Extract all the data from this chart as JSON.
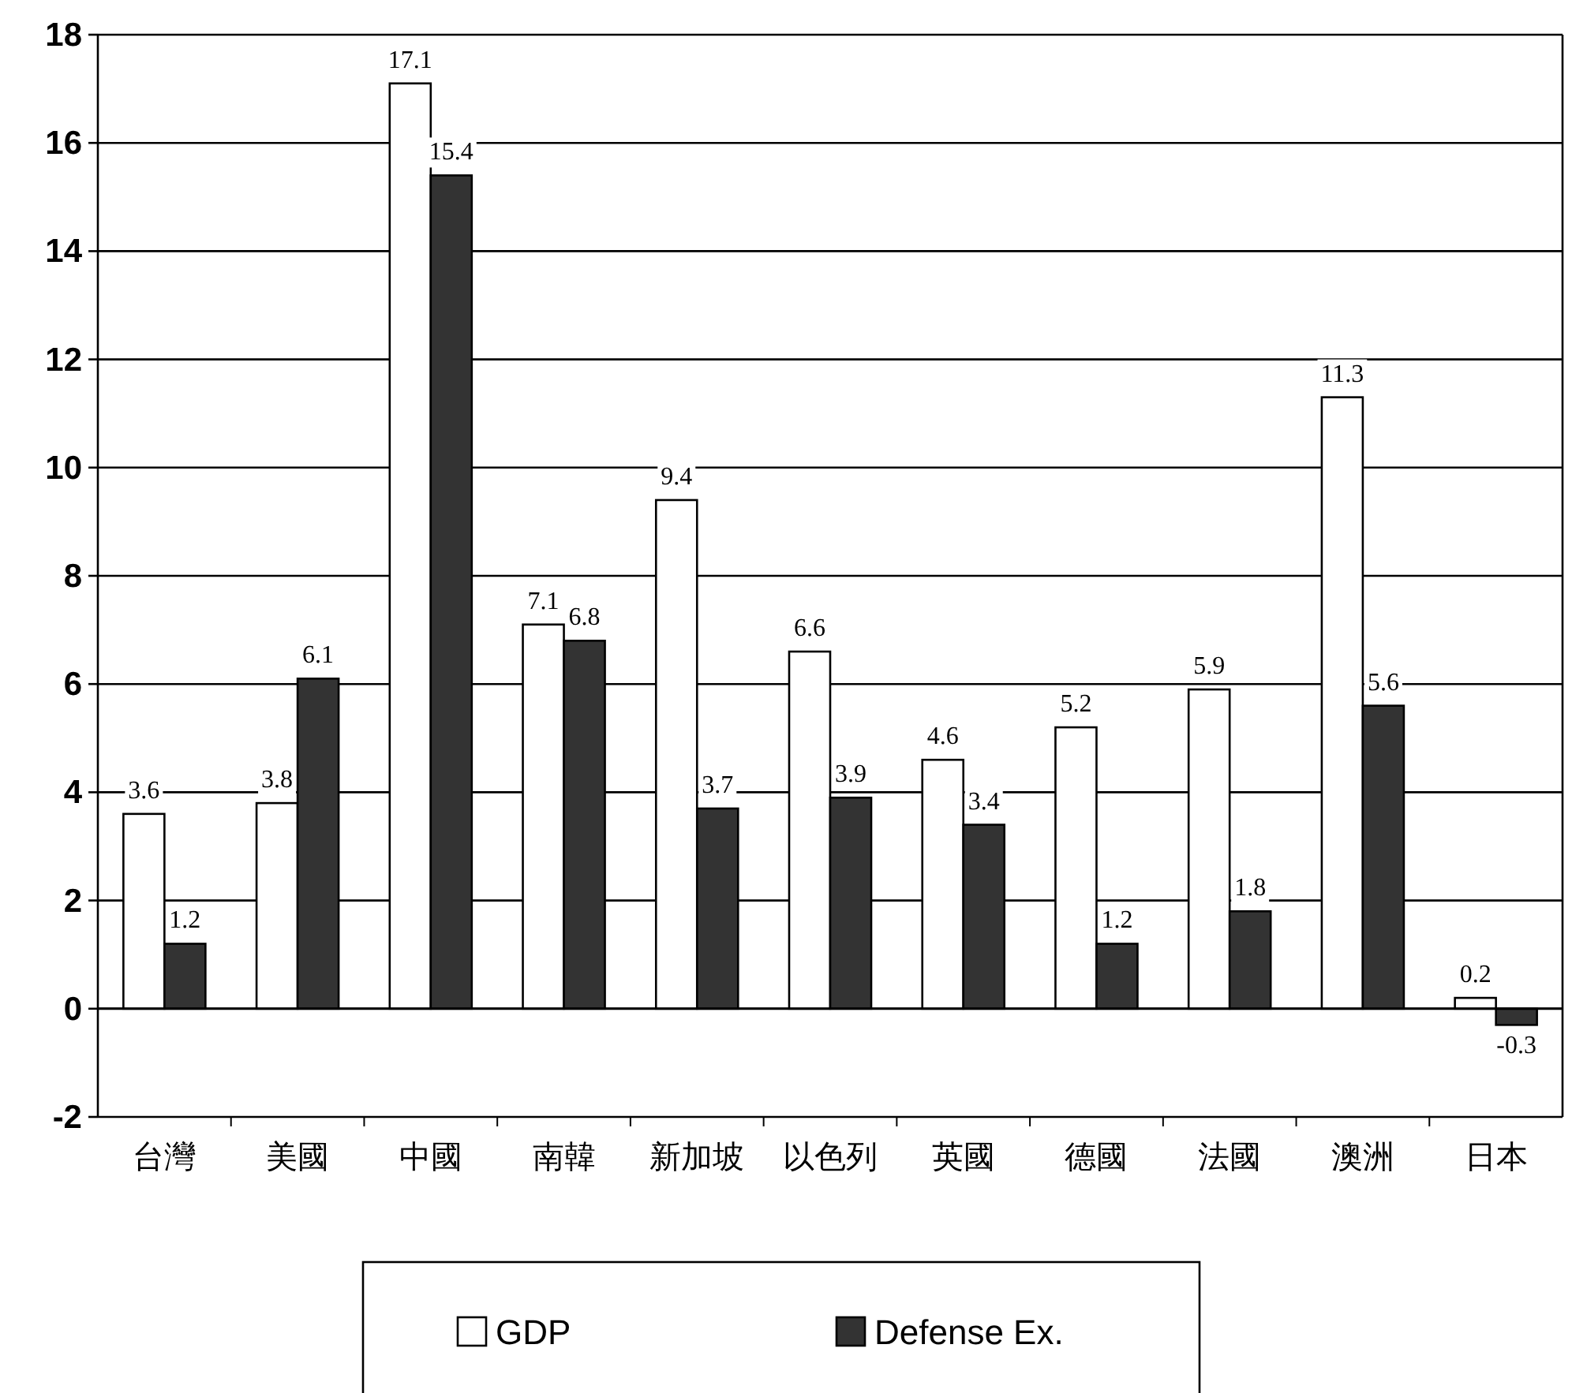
{
  "chart_data": {
    "type": "bar",
    "categories": [
      "台灣",
      "美國",
      "中國",
      "南韓",
      "新加坡",
      "以色列",
      "英國",
      "德國",
      "法國",
      "澳洲",
      "日本"
    ],
    "series": [
      {
        "name": "GDP",
        "color": "#ffffff",
        "values": [
          3.6,
          3.8,
          17.1,
          7.1,
          9.4,
          6.6,
          4.6,
          5.2,
          5.9,
          11.3,
          0.2
        ]
      },
      {
        "name": "Defense Ex.",
        "color": "#333333",
        "values": [
          1.2,
          6.1,
          15.4,
          6.8,
          3.7,
          3.9,
          3.4,
          1.2,
          1.8,
          5.6,
          -0.3
        ]
      }
    ],
    "ylim": [
      -2,
      18
    ],
    "yticks": [
      -2,
      0,
      2,
      4,
      6,
      8,
      10,
      12,
      14,
      16,
      18
    ],
    "grid": "y",
    "legend": "bottom",
    "data_labels": true
  }
}
